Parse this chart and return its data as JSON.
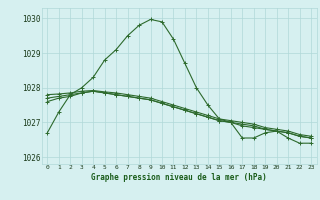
{
  "series": [
    {
      "x": [
        0,
        1,
        2,
        3,
        4,
        5,
        6,
        7,
        8,
        9,
        10,
        11,
        12,
        13,
        14,
        15,
        16,
        17,
        18,
        19,
        20,
        21,
        22,
        23
      ],
      "y": [
        1026.7,
        1027.3,
        1027.8,
        1028.0,
        1028.3,
        1028.8,
        1029.1,
        1029.5,
        1029.8,
        1029.97,
        1029.9,
        1029.4,
        1028.7,
        1028.0,
        1027.5,
        1027.1,
        1027.0,
        1026.55,
        1026.55,
        1026.7,
        1026.75,
        1026.55,
        1026.4,
        1026.4
      ],
      "color": "#2d6a2d",
      "marker": "+"
    },
    {
      "x": [
        0,
        1,
        2,
        3,
        4,
        5,
        6,
        7,
        8,
        9,
        10,
        11,
        12,
        13,
        14,
        15,
        16,
        17,
        18,
        19,
        20,
        21,
        22,
        23
      ],
      "y": [
        1027.6,
        1027.7,
        1027.75,
        1027.85,
        1027.9,
        1027.85,
        1027.8,
        1027.75,
        1027.7,
        1027.65,
        1027.55,
        1027.45,
        1027.35,
        1027.25,
        1027.15,
        1027.05,
        1027.0,
        1026.9,
        1026.85,
        1026.8,
        1026.75,
        1026.7,
        1026.6,
        1026.55
      ],
      "color": "#2d6a2d",
      "marker": "+"
    },
    {
      "x": [
        0,
        1,
        2,
        3,
        4,
        5,
        6,
        7,
        8,
        9,
        10,
        11,
        12,
        13,
        14,
        15,
        16,
        17,
        18,
        19,
        20,
        21,
        22,
        23
      ],
      "y": [
        1027.7,
        1027.75,
        1027.8,
        1027.85,
        1027.9,
        1027.85,
        1027.8,
        1027.75,
        1027.7,
        1027.65,
        1027.55,
        1027.45,
        1027.35,
        1027.25,
        1027.15,
        1027.05,
        1027.0,
        1026.95,
        1026.9,
        1026.8,
        1026.75,
        1026.7,
        1026.6,
        1026.55
      ],
      "color": "#2d6a2d",
      "marker": "+"
    },
    {
      "x": [
        0,
        1,
        2,
        3,
        4,
        5,
        6,
        7,
        8,
        9,
        10,
        11,
        12,
        13,
        14,
        15,
        16,
        17,
        18,
        19,
        20,
        21,
        22,
        23
      ],
      "y": [
        1027.8,
        1027.82,
        1027.85,
        1027.9,
        1027.92,
        1027.88,
        1027.85,
        1027.8,
        1027.75,
        1027.7,
        1027.6,
        1027.5,
        1027.4,
        1027.3,
        1027.2,
        1027.1,
        1027.05,
        1027.0,
        1026.95,
        1026.85,
        1026.8,
        1026.75,
        1026.65,
        1026.6
      ],
      "color": "#2d6a2d",
      "marker": "+"
    }
  ],
  "xlabel": "Graphe pression niveau de la mer (hPa)",
  "ylim": [
    1025.8,
    1030.3
  ],
  "yticks": [
    1026,
    1027,
    1028,
    1029,
    1030
  ],
  "xticks": [
    0,
    1,
    2,
    3,
    4,
    5,
    6,
    7,
    8,
    9,
    10,
    11,
    12,
    13,
    14,
    15,
    16,
    17,
    18,
    19,
    20,
    21,
    22,
    23
  ],
  "xticklabels": [
    "0",
    "1",
    "2",
    "3",
    "4",
    "5",
    "6",
    "7",
    "8",
    "9",
    "10",
    "11",
    "12",
    "13",
    "14",
    "15",
    "16",
    "17",
    "18",
    "19",
    "20",
    "21",
    "22",
    "23"
  ],
  "bg_color": "#d6f0f0",
  "grid_color": "#b0d8d8",
  "line_color": "#2d6a2d",
  "text_color": "#1a3a1a",
  "xlabel_color": "#1a5c1a"
}
